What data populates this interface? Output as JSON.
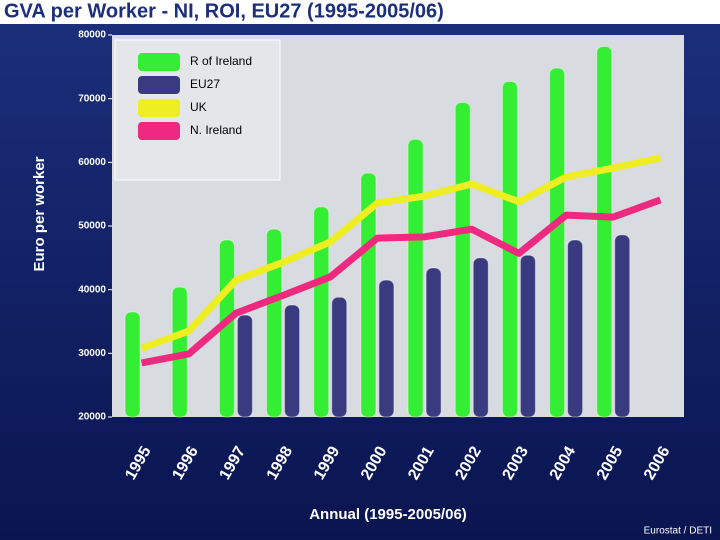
{
  "chart_data": {
    "type": "bar",
    "title": "GVA per Worker - NI, ROI, EU27 (1995-2005/06)",
    "x_label": "Annual (1995-2005/06)",
    "y_label": "Euro per worker",
    "source": "Eurostat / DETI",
    "categories": [
      "1995",
      "1996",
      "1997",
      "1998",
      "1999",
      "2000",
      "2001",
      "2002",
      "2003",
      "2004",
      "2005",
      "2006"
    ],
    "series": [
      {
        "name": "R of  Ireland",
        "color": "#33ee33",
        "kind": "bar",
        "values": [
          36500,
          40400,
          47800,
          49500,
          53000,
          58300,
          63600,
          69400,
          72700,
          74800,
          78200,
          null
        ]
      },
      {
        "name": "EU27",
        "color": "#3a3a80",
        "kind": "bar",
        "values": [
          null,
          null,
          36000,
          37600,
          38800,
          41500,
          43400,
          45000,
          45400,
          47800,
          48600,
          null
        ]
      },
      {
        "name": "UK",
        "color": "#eeee22",
        "kind": "line",
        "values": [
          30800,
          33500,
          41500,
          44300,
          47500,
          53600,
          54700,
          56600,
          53800,
          57700,
          59100,
          60700
        ]
      },
      {
        "name": "N. Ireland",
        "color": "#ee2a80",
        "kind": "line",
        "values": [
          28500,
          29900,
          36300,
          39100,
          42000,
          48100,
          48300,
          49500,
          45700,
          51700,
          51400,
          54100
        ]
      }
    ],
    "ylim": [
      20000,
      80000
    ],
    "yticks": [
      20000,
      30000,
      40000,
      50000,
      60000,
      70000,
      80000
    ],
    "legend": "upper left"
  }
}
